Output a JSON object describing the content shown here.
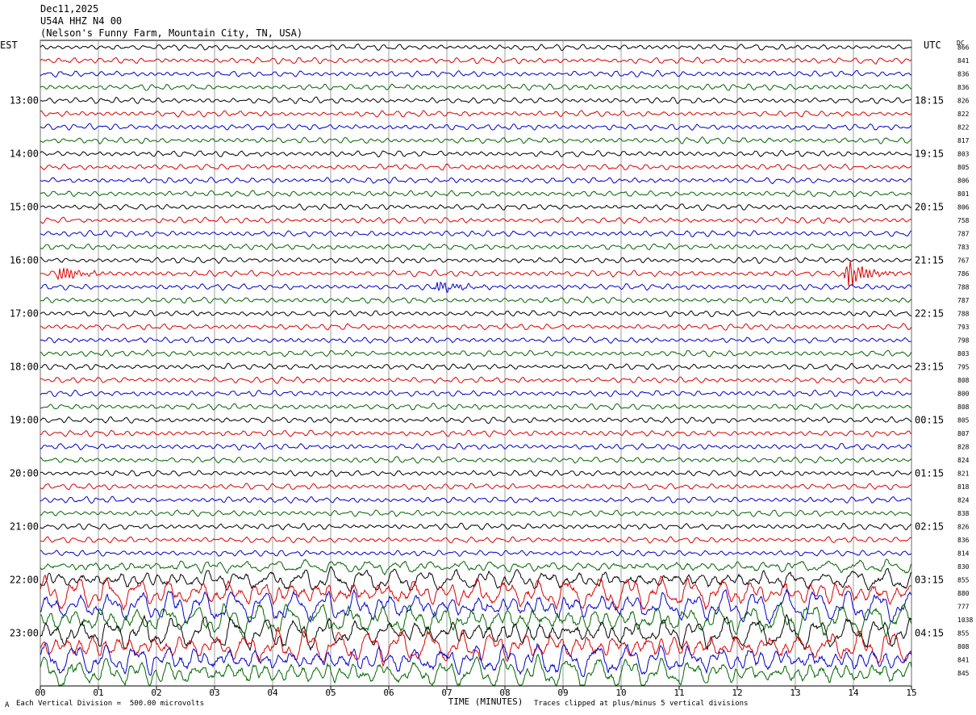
{
  "header": {
    "date": "Dec11,2025",
    "station": "U54A HHZ N4 00",
    "location": "(Nelson's Funny Farm, Mountain City, TN, USA)"
  },
  "footer": {
    "scale_note": "Each Vertical Division =  500.00 microvolts",
    "clip_note": "Traces clipped at plus/minus 5 vertical divisions",
    "corner_mark": "A"
  },
  "chart_data": {
    "type": "line",
    "title": "",
    "xlabel": "TIME (MINUTES)",
    "xlim": [
      0,
      15
    ],
    "x_ticks": [
      "00",
      "01",
      "02",
      "03",
      "04",
      "05",
      "06",
      "07",
      "08",
      "09",
      "10",
      "11",
      "12",
      "13",
      "14",
      "15"
    ],
    "left_axis_title": "EST",
    "right_axis_title": "UTC",
    "dc_title": "DC",
    "trace_colors": [
      "#000000",
      "#dd0000",
      "#0000cc",
      "#006600"
    ],
    "left_hour_labels": [
      {
        "trace": 4,
        "label": "13:00"
      },
      {
        "trace": 8,
        "label": "14:00"
      },
      {
        "trace": 12,
        "label": "15:00"
      },
      {
        "trace": 16,
        "label": "16:00"
      },
      {
        "trace": 20,
        "label": "17:00"
      },
      {
        "trace": 24,
        "label": "18:00"
      },
      {
        "trace": 28,
        "label": "19:00"
      },
      {
        "trace": 32,
        "label": "20:00"
      },
      {
        "trace": 36,
        "label": "21:00"
      },
      {
        "trace": 40,
        "label": "22:00"
      },
      {
        "trace": 44,
        "label": "23:00"
      }
    ],
    "right_hour_labels": [
      {
        "trace": 4,
        "label": "18:15"
      },
      {
        "trace": 8,
        "label": "19:15"
      },
      {
        "trace": 12,
        "label": "20:15"
      },
      {
        "trace": 16,
        "label": "21:15"
      },
      {
        "trace": 20,
        "label": "22:15"
      },
      {
        "trace": 24,
        "label": "23:15"
      },
      {
        "trace": 28,
        "label": "00:15"
      },
      {
        "trace": 32,
        "label": "01:15"
      },
      {
        "trace": 36,
        "label": "02:15"
      },
      {
        "trace": 40,
        "label": "03:15"
      },
      {
        "trace": 44,
        "label": "04:15"
      }
    ],
    "dc_values": [
      "866",
      "841",
      "836",
      "836",
      "826",
      "822",
      "822",
      "817",
      "803",
      "805",
      "806",
      "801",
      "806",
      "758",
      "787",
      "783",
      "767",
      "786",
      "788",
      "787",
      "788",
      "793",
      "798",
      "803",
      "795",
      "808",
      "800",
      "808",
      "805",
      "807",
      "828",
      "824",
      "821",
      "818",
      "824",
      "838",
      "826",
      "836",
      "814",
      "830",
      "855",
      "880",
      "777",
      "1038",
      "855",
      "808",
      "841",
      "845"
    ],
    "events": [
      {
        "trace": 17,
        "minute": 0.35,
        "amplitude": 1.6
      },
      {
        "trace": 17,
        "minute": 13.9,
        "amplitude": 3.0
      },
      {
        "trace": 18,
        "minute": 6.85,
        "amplitude": 1.2
      }
    ],
    "noise_onset_trace": 39
  }
}
